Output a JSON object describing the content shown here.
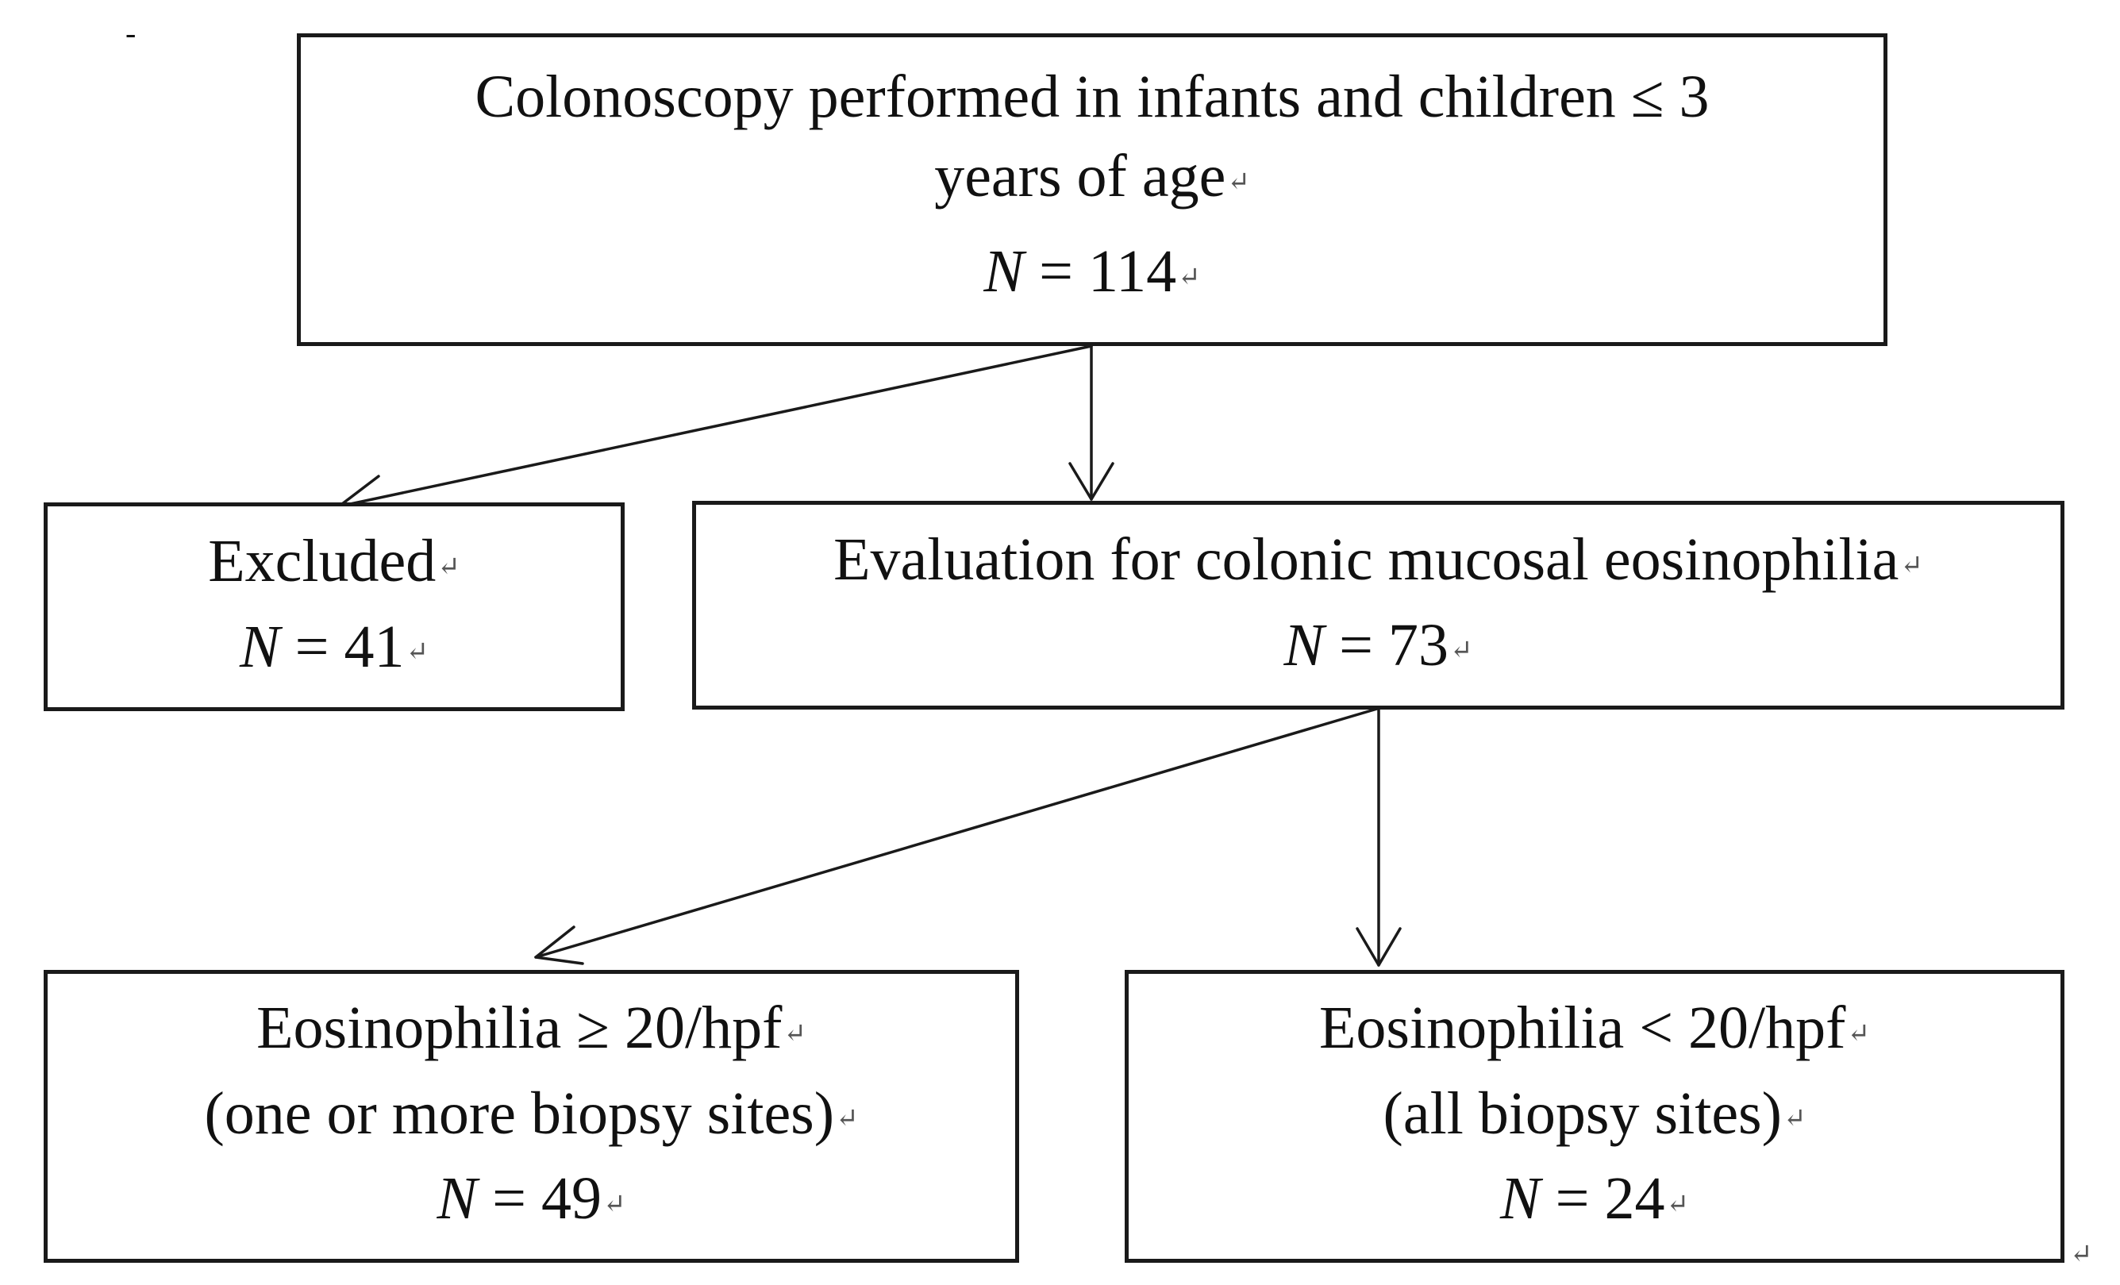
{
  "page_marks": {
    "top_left_mark": "-",
    "end_return_mark": "↵"
  },
  "boxes": {
    "top": {
      "line1": "Colonoscopy performed in infants and children ≤ 3",
      "line2": "years of age",
      "n_var": "N",
      "n_value": " = 114"
    },
    "excluded": {
      "line1": "Excluded",
      "n_var": "N",
      "n_value": " = 41"
    },
    "evaluation": {
      "line1": "Evaluation for colonic mucosal eosinophilia",
      "n_var": "N",
      "n_value": " = 73"
    },
    "high": {
      "line1": "Eosinophilia ≥ 20/hpf",
      "line2": "(one or more biopsy sites)",
      "n_var": "N",
      "n_value": " = 49"
    },
    "low": {
      "line1": "Eosinophilia < 20/hpf",
      "line2": "(all biopsy sites)",
      "n_var": "N",
      "n_value": " = 24"
    }
  },
  "colors": {
    "stroke": "#1a1a1a",
    "background": "#ffffff"
  }
}
